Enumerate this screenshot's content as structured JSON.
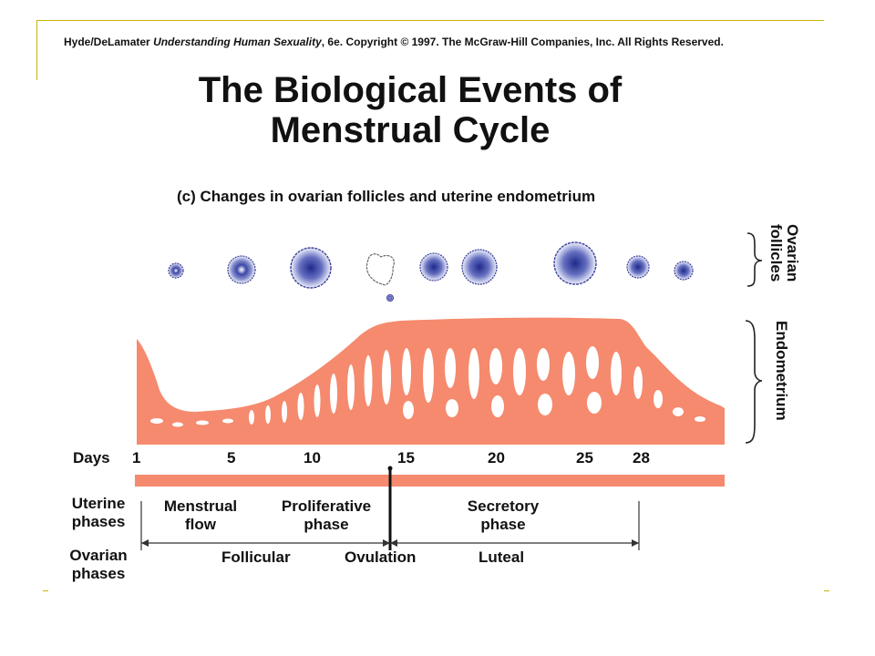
{
  "header": {
    "credit_authors": "Hyde/DeLamater",
    "credit_book": "Understanding Human Sexuality",
    "credit_rest": ", 6e.  Copyright © 1997. The McGraw-Hill Companies, Inc. All Rights Reserved."
  },
  "title": {
    "line1": "The Biological Events of",
    "line2": "Menstrual Cycle"
  },
  "subtitle": "(c) Changes in ovarian follicles and uterine endometrium",
  "side_labels": {
    "follicles_1": "Ovarian",
    "follicles_2": "follicles",
    "endometrium": "Endometrium"
  },
  "days": {
    "label": "Days",
    "ticks": [
      "1",
      "5",
      "10",
      "15",
      "20",
      "25",
      "28"
    ]
  },
  "uterine_phases": {
    "label_1": "Uterine",
    "label_2": "phases",
    "menstrual_1": "Menstrual",
    "menstrual_2": "flow",
    "proliferative_1": "Proliferative",
    "proliferative_2": "phase",
    "secretory_1": "Secretory",
    "secretory_2": "phase"
  },
  "ovarian_phases": {
    "label_1": "Ovarian",
    "label_2": "phases",
    "follicular": "Follicular",
    "ovulation": "Ovulation",
    "luteal": "Luteal"
  },
  "colors": {
    "endometrium": "#f58a6e",
    "follicle": "#3b3f9a",
    "frame": "#c8b400"
  }
}
